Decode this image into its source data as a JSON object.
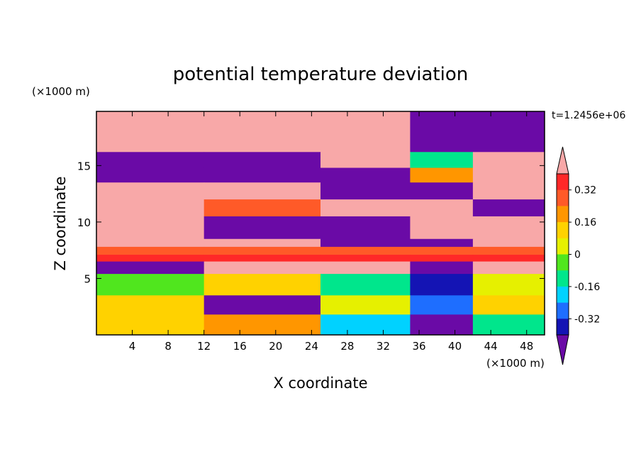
{
  "chart_data": {
    "type": "heatmap",
    "title": "potential temperature deviation",
    "xlabel": "X coordinate",
    "ylabel": "Z coordinate",
    "x_units": "(×1000 m)",
    "y_units": "(×1000 m)",
    "time_label": "t=1.2456e+06",
    "xlim": [
      0,
      50
    ],
    "ylim": [
      0,
      19.8
    ],
    "x_ticks": [
      4,
      8,
      12,
      16,
      20,
      24,
      28,
      32,
      36,
      40,
      44,
      48
    ],
    "y_ticks": [
      5,
      10,
      15
    ],
    "colorbar": {
      "levels": [
        -0.4,
        -0.32,
        -0.24,
        -0.16,
        -0.08,
        0,
        0.08,
        0.16,
        0.24,
        0.32,
        0.4
      ],
      "labeled": [
        "0.32",
        "0.16",
        "0",
        "-0.16",
        "-0.32"
      ],
      "labeled_values": [
        0.32,
        0.16,
        0,
        -0.16,
        -0.32
      ],
      "colors": [
        "#6a0aa6",
        "#1414b4",
        "#1e6eff",
        "#00d2ff",
        "#00e68c",
        "#50e61e",
        "#e6f000",
        "#ffd200",
        "#ff9600",
        "#ff5a28",
        "#ff2828",
        "#f8a8a8"
      ],
      "extend": "both"
    },
    "layers": [
      {
        "z": [
          16.2,
          19.8
        ],
        "xs": [
          0,
          12,
          25,
          35,
          42,
          50
        ],
        "values": [
          0.5,
          0.5,
          0.5,
          -0.5,
          -0.5,
          -0.5
        ]
      },
      {
        "z": [
          14.8,
          16.2
        ],
        "xs": [
          0,
          12,
          25,
          35,
          42,
          50
        ],
        "values": [
          -0.5,
          -0.5,
          0.5,
          -0.1,
          0.5,
          0.5
        ]
      },
      {
        "z": [
          13.5,
          14.8
        ],
        "xs": [
          0,
          12,
          25,
          35,
          42,
          50
        ],
        "values": [
          -0.5,
          -0.5,
          -0.5,
          0.2,
          0.5,
          0.5
        ]
      },
      {
        "z": [
          12.0,
          13.5
        ],
        "xs": [
          0,
          12,
          25,
          35,
          42,
          50
        ],
        "values": [
          0.5,
          0.5,
          -0.5,
          -0.5,
          0.5,
          0.5
        ]
      },
      {
        "z": [
          10.5,
          12.0
        ],
        "xs": [
          0,
          12,
          25,
          35,
          42,
          50
        ],
        "values": [
          0.5,
          0.3,
          0.5,
          0.5,
          -0.5,
          -0.5
        ]
      },
      {
        "z": [
          8.5,
          10.5
        ],
        "xs": [
          0,
          12,
          25,
          35,
          42,
          50
        ],
        "values": [
          0.5,
          -0.5,
          -0.5,
          0.5,
          0.5,
          0.5
        ]
      },
      {
        "z": [
          7.8,
          8.5
        ],
        "xs": [
          0,
          12,
          25,
          35,
          42,
          50
        ],
        "values": [
          0.5,
          0.5,
          -0.5,
          -0.5,
          0.5,
          0.5
        ]
      },
      {
        "z": [
          7.1,
          7.8
        ],
        "xs": [
          0,
          12,
          25,
          35,
          42,
          50
        ],
        "values": [
          0.25,
          0.25,
          0.25,
          0.25,
          0.25,
          0.25
        ]
      },
      {
        "z": [
          6.5,
          7.1
        ],
        "xs": [
          0,
          12,
          25,
          35,
          42,
          50
        ],
        "values": [
          0.35,
          0.35,
          0.35,
          0.35,
          0.35,
          0.35
        ]
      },
      {
        "z": [
          5.4,
          6.5
        ],
        "xs": [
          0,
          12,
          25,
          35,
          42,
          50
        ],
        "values": [
          -0.5,
          0.5,
          0.5,
          -0.5,
          0.5,
          -0.5
        ]
      },
      {
        "z": [
          3.5,
          5.4
        ],
        "xs": [
          0,
          12,
          25,
          35,
          42,
          50
        ],
        "values": [
          -0.05,
          0.1,
          -0.1,
          -0.4,
          0.05,
          0.4
        ]
      },
      {
        "z": [
          1.8,
          3.5
        ],
        "xs": [
          0,
          12,
          25,
          35,
          42,
          50
        ],
        "values": [
          0.15,
          -0.5,
          0.05,
          -0.3,
          0.1,
          0.5
        ]
      },
      {
        "z": [
          0,
          1.8
        ],
        "xs": [
          0,
          12,
          25,
          35,
          42,
          50
        ],
        "values": [
          0.1,
          0.2,
          -0.2,
          -0.45,
          -0.1,
          0.3
        ]
      }
    ]
  }
}
